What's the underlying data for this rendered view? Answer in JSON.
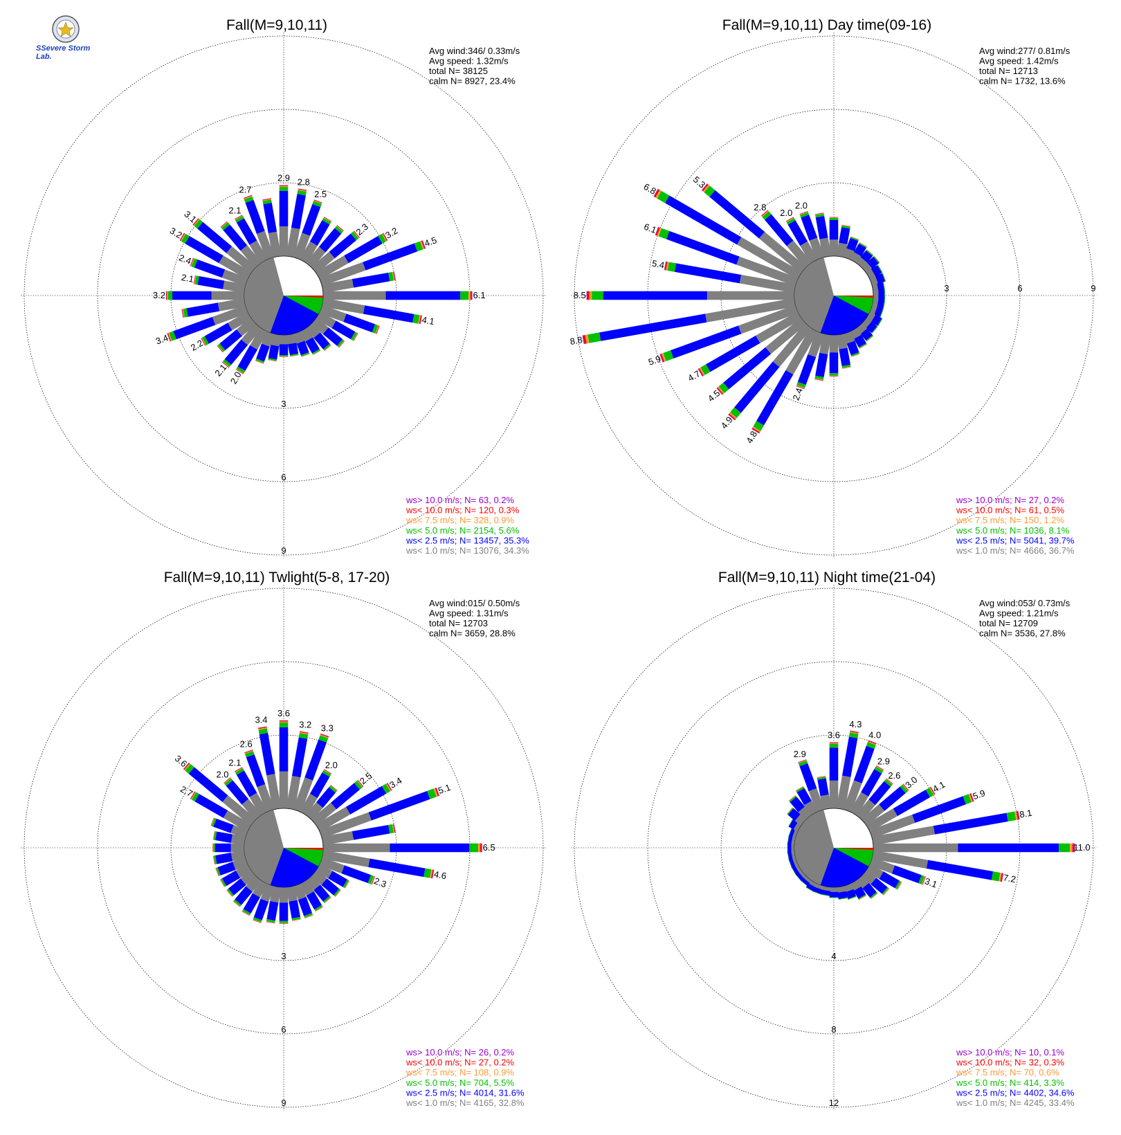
{
  "logo": {
    "text": "SSevere Storm Lab."
  },
  "colors": {
    "gray": "#808080",
    "blue": "#0000ff",
    "green": "#00c000",
    "orange": "#ff9933",
    "red": "#ff0000",
    "purple": "#9900cc"
  },
  "chart_data": [
    {
      "type": "windrose",
      "title": "Fall(M=9,10,11)",
      "stats": [
        "Avg wind:346/ 0.33m/s",
        "Avg speed: 1.32m/s",
        "total N=       38125",
        "calm N=   8927,  23.4%"
      ],
      "legend": [
        {
          "text": "ws> 10.0 m/s; N=     63,  0.2%",
          "color": "purple"
        },
        {
          "text": "ws< 10.0 m/s; N=   120,  0.3%",
          "color": "red"
        },
        {
          "text": "ws<  7.5 m/s; N=   328,  0.9%",
          "color": "orange"
        },
        {
          "text": "ws<  5.0 m/s; N=  2154,  5.6%",
          "color": "green"
        },
        {
          "text": "ws<  2.5 m/s; N= 13457, 35.3%",
          "color": "blue"
        },
        {
          "text": "ws<  1.0 m/s; N= 13076, 34.3%",
          "color": "gray"
        }
      ],
      "ring_labels": [
        "3",
        "6",
        "9"
      ],
      "ring_max": 9,
      "calm_pct": 23.4,
      "directions": [
        {
          "angle": 0,
          "total": 2.9,
          "label": "2.9"
        },
        {
          "angle": 10,
          "total": 2.8,
          "label": "2.8"
        },
        {
          "angle": 20,
          "total": 2.5,
          "label": "2.5"
        },
        {
          "angle": 30,
          "total": 2.0
        },
        {
          "angle": 40,
          "total": 2.0
        },
        {
          "angle": 50,
          "total": 2.3,
          "label": "2.3"
        },
        {
          "angle": 60,
          "total": 3.2,
          "label": "3.2"
        },
        {
          "angle": 70,
          "total": 4.5,
          "label": "4.5"
        },
        {
          "angle": 80,
          "total": 3.0
        },
        {
          "angle": 90,
          "total": 6.1,
          "label": "6.1"
        },
        {
          "angle": 100,
          "total": 4.1,
          "label": "4.1"
        },
        {
          "angle": 110,
          "total": 2.5
        },
        {
          "angle": 120,
          "total": 1.8
        },
        {
          "angle": 130,
          "total": 1.5
        },
        {
          "angle": 140,
          "total": 1.2
        },
        {
          "angle": 150,
          "total": 1.1
        },
        {
          "angle": 160,
          "total": 1.0
        },
        {
          "angle": 170,
          "total": 0.9
        },
        {
          "angle": 180,
          "total": 0.9
        },
        {
          "angle": 190,
          "total": 1.1
        },
        {
          "angle": 200,
          "total": 1.3
        },
        {
          "angle": 210,
          "total": 2.0,
          "label": "2.0"
        },
        {
          "angle": 220,
          "total": 2.1,
          "label": "2.1"
        },
        {
          "angle": 230,
          "total": 1.8
        },
        {
          "angle": 240,
          "total": 2.2,
          "label": "2.2"
        },
        {
          "angle": 250,
          "total": 3.4,
          "label": "3.4"
        },
        {
          "angle": 260,
          "total": 2.6
        },
        {
          "angle": 270,
          "total": 3.2,
          "label": "3.2"
        },
        {
          "angle": 280,
          "total": 2.1,
          "label": "2.1"
        },
        {
          "angle": 290,
          "total": 2.4,
          "label": "2.4"
        },
        {
          "angle": 300,
          "total": 3.2,
          "label": "3.2"
        },
        {
          "angle": 310,
          "total": 3.1,
          "label": "3.1"
        },
        {
          "angle": 320,
          "total": 2.2
        },
        {
          "angle": 330,
          "total": 2.1,
          "label": "2.1"
        },
        {
          "angle": 340,
          "total": 2.7,
          "label": "2.7"
        },
        {
          "angle": 350,
          "total": 2.4
        }
      ]
    },
    {
      "type": "windrose",
      "title": "Fall(M=9,10,11) Day time(09-16)",
      "stats": [
        "Avg wind:277/ 0.81m/s",
        "Avg speed: 1.42m/s",
        "total N=       12713",
        "calm N=   1732,  13.6%"
      ],
      "legend": [
        {
          "text": "ws> 10.0 m/s; N=     27,  0.2%",
          "color": "purple"
        },
        {
          "text": "ws< 10.0 m/s; N=     61,  0.5%",
          "color": "red"
        },
        {
          "text": "ws<  7.5 m/s; N=   150,  1.2%",
          "color": "orange"
        },
        {
          "text": "ws<  5.0 m/s; N=  1036,  8.1%",
          "color": "green"
        },
        {
          "text": "ws<  2.5 m/s; N=  5041, 39.7%",
          "color": "blue"
        },
        {
          "text": "ws<  1.0 m/s; N=  4666, 36.7%",
          "color": "gray"
        }
      ],
      "ring_labels": [
        "3",
        "6",
        "9"
      ],
      "ring_max": 9,
      "calm_pct": 13.6,
      "directions": [
        {
          "angle": 0,
          "total": 1.6
        },
        {
          "angle": 10,
          "total": 1.3
        },
        {
          "angle": 20,
          "total": 0.9
        },
        {
          "angle": 30,
          "total": 0.8
        },
        {
          "angle": 40,
          "total": 0.7
        },
        {
          "angle": 50,
          "total": 0.7
        },
        {
          "angle": 60,
          "total": 0.6
        },
        {
          "angle": 70,
          "total": 0.6
        },
        {
          "angle": 80,
          "total": 0.5
        },
        {
          "angle": 90,
          "total": 0.5
        },
        {
          "angle": 100,
          "total": 0.5
        },
        {
          "angle": 110,
          "total": 0.5
        },
        {
          "angle": 120,
          "total": 0.6
        },
        {
          "angle": 130,
          "total": 0.6
        },
        {
          "angle": 140,
          "total": 0.7
        },
        {
          "angle": 150,
          "total": 0.8
        },
        {
          "angle": 160,
          "total": 1.0
        },
        {
          "angle": 170,
          "total": 1.4
        },
        {
          "angle": 180,
          "total": 1.7
        },
        {
          "angle": 190,
          "total": 1.9
        },
        {
          "angle": 200,
          "total": 2.4,
          "label": "2.4"
        },
        {
          "angle": 210,
          "total": 4.8,
          "label": "4.8"
        },
        {
          "angle": 220,
          "total": 4.9,
          "label": "4.9"
        },
        {
          "angle": 230,
          "total": 4.5,
          "label": "4.5"
        },
        {
          "angle": 240,
          "total": 4.7,
          "label": "4.7"
        },
        {
          "angle": 250,
          "total": 5.9,
          "label": "5.9"
        },
        {
          "angle": 260,
          "total": 8.8,
          "label": "8.8"
        },
        {
          "angle": 270,
          "total": 8.5,
          "label": "8.5"
        },
        {
          "angle": 280,
          "total": 5.4,
          "label": "5.4"
        },
        {
          "angle": 290,
          "total": 6.1,
          "label": "6.1"
        },
        {
          "angle": 300,
          "total": 6.8,
          "label": "6.8"
        },
        {
          "angle": 310,
          "total": 5.3,
          "label": "5.3"
        },
        {
          "angle": 320,
          "total": 2.8,
          "label": "2.8"
        },
        {
          "angle": 330,
          "total": 2.0,
          "label": "2.0"
        },
        {
          "angle": 340,
          "total": 2.0,
          "label": "2.0"
        },
        {
          "angle": 350,
          "total": 1.8
        }
      ]
    },
    {
      "type": "windrose",
      "title": "Fall(M=9,10,11) Twlight(5-8, 17-20)",
      "stats": [
        "Avg wind:015/ 0.50m/s",
        "Avg speed: 1.31m/s",
        "total N=       12703",
        "calm N=   3659,  28.8%"
      ],
      "legend": [
        {
          "text": "ws> 10.0 m/s; N=     26,  0.2%",
          "color": "purple"
        },
        {
          "text": "ws< 10.0 m/s; N=     27,  0.2%",
          "color": "red"
        },
        {
          "text": "ws<  7.5 m/s; N=   108,  0.9%",
          "color": "orange"
        },
        {
          "text": "ws<  5.0 m/s; N=   704,  5.5%",
          "color": "green"
        },
        {
          "text": "ws<  2.5 m/s; N=  4014, 31.6%",
          "color": "blue"
        },
        {
          "text": "ws<  1.0 m/s; N=  4165, 32.8%",
          "color": "gray"
        }
      ],
      "ring_labels": [
        "3",
        "6",
        "9"
      ],
      "ring_max": 9,
      "calm_pct": 28.8,
      "directions": [
        {
          "angle": 0,
          "total": 3.6,
          "label": "3.6"
        },
        {
          "angle": 10,
          "total": 3.2,
          "label": "3.2"
        },
        {
          "angle": 20,
          "total": 3.3,
          "label": "3.3"
        },
        {
          "angle": 30,
          "total": 2.0,
          "label": "2.0"
        },
        {
          "angle": 40,
          "total": 1.6
        },
        {
          "angle": 50,
          "total": 2.5,
          "label": "2.5"
        },
        {
          "angle": 60,
          "total": 3.4,
          "label": "3.4"
        },
        {
          "angle": 70,
          "total": 5.1,
          "label": "5.1"
        },
        {
          "angle": 80,
          "total": 3.0
        },
        {
          "angle": 90,
          "total": 6.5,
          "label": "6.5"
        },
        {
          "angle": 100,
          "total": 4.6,
          "label": "4.6"
        },
        {
          "angle": 110,
          "total": 2.3,
          "label": "2.3"
        },
        {
          "angle": 120,
          "total": 1.4
        },
        {
          "angle": 130,
          "total": 1.3
        },
        {
          "angle": 140,
          "total": 1.2
        },
        {
          "angle": 150,
          "total": 1.3
        },
        {
          "angle": 160,
          "total": 1.4
        },
        {
          "angle": 170,
          "total": 1.4
        },
        {
          "angle": 180,
          "total": 1.5
        },
        {
          "angle": 190,
          "total": 1.5
        },
        {
          "angle": 200,
          "total": 1.6
        },
        {
          "angle": 210,
          "total": 1.5
        },
        {
          "angle": 220,
          "total": 1.4
        },
        {
          "angle": 230,
          "total": 1.3
        },
        {
          "angle": 240,
          "total": 1.3
        },
        {
          "angle": 250,
          "total": 1.3
        },
        {
          "angle": 260,
          "total": 1.3
        },
        {
          "angle": 270,
          "total": 1.3
        },
        {
          "angle": 280,
          "total": 1.3
        },
        {
          "angle": 290,
          "total": 1.5
        },
        {
          "angle": 300,
          "total": 2.7,
          "label": "2.7"
        },
        {
          "angle": 310,
          "total": 3.6,
          "label": "3.6"
        },
        {
          "angle": 320,
          "total": 2.0,
          "label": "2.0"
        },
        {
          "angle": 330,
          "total": 2.1,
          "label": "2.1"
        },
        {
          "angle": 340,
          "total": 2.6,
          "label": "2.6"
        },
        {
          "angle": 350,
          "total": 3.4,
          "label": "3.4"
        }
      ]
    },
    {
      "type": "windrose",
      "title": "Fall(M=9,10,11) Night time(21-04)",
      "stats": [
        "Avg wind:053/ 0.73m/s",
        "Avg speed: 1.21m/s",
        "total N=       12709",
        "calm N=   3536,  27.8%"
      ],
      "legend": [
        {
          "text": "ws> 10.0 m/s; N=     10,  0.1%",
          "color": "purple"
        },
        {
          "text": "ws< 10.0 m/s; N=     32,  0.3%",
          "color": "red"
        },
        {
          "text": "ws<  7.5 m/s; N=     70,  0.6%",
          "color": "orange"
        },
        {
          "text": "ws<  5.0 m/s; N=   414,  3.3%",
          "color": "green"
        },
        {
          "text": "ws<  2.5 m/s; N=  4402, 34.6%",
          "color": "blue"
        },
        {
          "text": "ws<  1.0 m/s; N=  4245, 33.4%",
          "color": "gray"
        }
      ],
      "ring_labels": [
        "4",
        "8",
        "12"
      ],
      "ring_max": 12,
      "calm_pct": 27.8,
      "directions": [
        {
          "angle": 0,
          "total": 3.6,
          "label": "3.6"
        },
        {
          "angle": 10,
          "total": 4.3,
          "label": "4.3"
        },
        {
          "angle": 20,
          "total": 4.0,
          "label": "4.0"
        },
        {
          "angle": 30,
          "total": 2.9,
          "label": "2.9"
        },
        {
          "angle": 40,
          "total": 2.6,
          "label": "2.6"
        },
        {
          "angle": 50,
          "total": 3.0,
          "label": "3.0"
        },
        {
          "angle": 60,
          "total": 4.1,
          "label": "4.1"
        },
        {
          "angle": 70,
          "total": 5.9,
          "label": "5.9"
        },
        {
          "angle": 80,
          "total": 8.1,
          "label": "8.1"
        },
        {
          "angle": 90,
          "total": 11.0,
          "label": "11.0"
        },
        {
          "angle": 100,
          "total": 7.2,
          "label": "7.2"
        },
        {
          "angle": 110,
          "total": 3.1,
          "label": "3.1"
        },
        {
          "angle": 120,
          "total": 2.0
        },
        {
          "angle": 130,
          "total": 1.6
        },
        {
          "angle": 140,
          "total": 1.3
        },
        {
          "angle": 150,
          "total": 1.0
        },
        {
          "angle": 160,
          "total": 0.8
        },
        {
          "angle": 170,
          "total": 0.7
        },
        {
          "angle": 180,
          "total": 0.6
        },
        {
          "angle": 190,
          "total": 0.5
        },
        {
          "angle": 200,
          "total": 0.5
        },
        {
          "angle": 210,
          "total": 0.5
        },
        {
          "angle": 220,
          "total": 0.4
        },
        {
          "angle": 230,
          "total": 0.4
        },
        {
          "angle": 240,
          "total": 0.4
        },
        {
          "angle": 250,
          "total": 0.4
        },
        {
          "angle": 260,
          "total": 0.4
        },
        {
          "angle": 270,
          "total": 0.4
        },
        {
          "angle": 280,
          "total": 0.4
        },
        {
          "angle": 290,
          "total": 0.4
        },
        {
          "angle": 300,
          "total": 0.6
        },
        {
          "angle": 310,
          "total": 1.0
        },
        {
          "angle": 320,
          "total": 1.4
        },
        {
          "angle": 330,
          "total": 1.6
        },
        {
          "angle": 340,
          "total": 2.9,
          "label": "2.9"
        },
        {
          "angle": 350,
          "total": 1.8
        }
      ]
    }
  ]
}
